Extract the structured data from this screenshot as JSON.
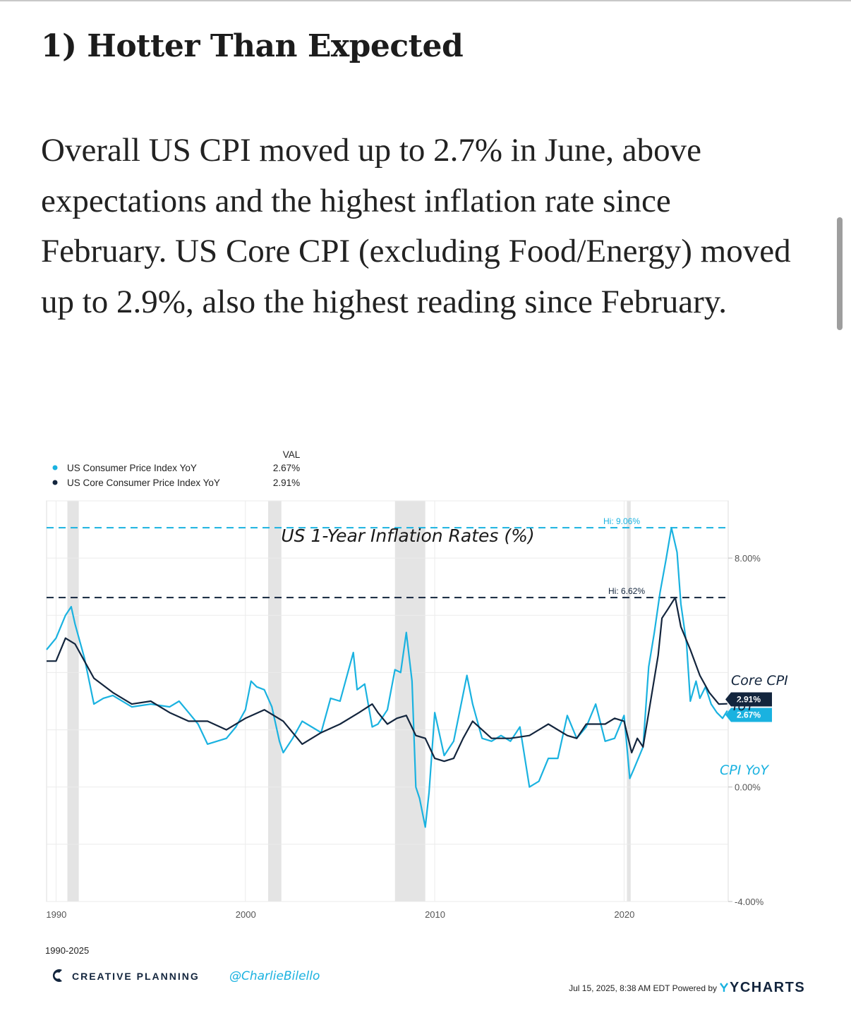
{
  "article": {
    "heading": "1) Hotter Than Expected",
    "paragraph": "Overall US CPI moved up to 2.7% in June, above expectations and the highest inflation rate since February. US Core CPI (excluding Food/Energy) moved up to 2.9%, also the highest reading since February."
  },
  "chart_data": {
    "type": "line",
    "title": "US 1-Year Inflation Rates (%)",
    "xlabel": "",
    "ylabel": "",
    "xlim": [
      1989.5,
      2025.5
    ],
    "ylim": [
      -4.0,
      10.0
    ],
    "x_ticks": [
      1990,
      2000,
      2010,
      2020
    ],
    "x_tick_labels": [
      "1990",
      "2000",
      "2010",
      "2020"
    ],
    "y_ticks": [
      8.0,
      0.0,
      -4.0
    ],
    "y_tick_labels": [
      "8.00%",
      "0.00%",
      "-4.00%"
    ],
    "gridlines": [
      10,
      8,
      6,
      4,
      2,
      0,
      -2,
      -4
    ],
    "recessions": [
      [
        1990.6,
        1991.2
      ],
      [
        2001.2,
        2001.9
      ],
      [
        2007.9,
        2009.5
      ],
      [
        2020.15,
        2020.35
      ]
    ],
    "legend": {
      "header": "VAL",
      "items": [
        {
          "name": "US Consumer Price Index YoY",
          "value": "2.67%",
          "color": "#1ab2e0"
        },
        {
          "name": "US Core Consumer Price Index YoY",
          "value": "2.91%",
          "color": "#13253d"
        }
      ]
    },
    "reference_lines": [
      {
        "label": "Hi: 9.06%",
        "value": 9.06,
        "color": "#1ab2e0"
      },
      {
        "label": "Hi: 6.62%",
        "value": 6.62,
        "color": "#13253d"
      }
    ],
    "end_labels": [
      {
        "series": "US Core Consumer Price Index YoY",
        "text": "2.91%",
        "value": 2.91
      },
      {
        "series": "US Consumer Price Index YoY",
        "text": "2.67%",
        "value": 2.67
      }
    ],
    "annotations": {
      "core": [
        "Core CPI",
        "YoY"
      ],
      "cpi": "CPI YoY"
    },
    "series": [
      {
        "name": "US Consumer Price Index YoY",
        "color": "#1ab2e0",
        "x": [
          1989.5,
          1990.0,
          1990.5,
          1990.8,
          1991.0,
          1991.5,
          1992.0,
          1992.5,
          1993.0,
          1994.0,
          1995.0,
          1996.0,
          1996.5,
          1997.0,
          1997.5,
          1998.0,
          1998.5,
          1999.0,
          1999.5,
          2000.0,
          2000.3,
          2000.6,
          2001.0,
          2001.4,
          2001.8,
          2002.0,
          2002.5,
          2003.0,
          2003.5,
          2004.0,
          2004.5,
          2005.0,
          2005.7,
          2005.9,
          2006.3,
          2006.7,
          2007.0,
          2007.5,
          2007.9,
          2008.2,
          2008.5,
          2008.8,
          2009.0,
          2009.2,
          2009.5,
          2009.7,
          2010.0,
          2010.5,
          2011.0,
          2011.7,
          2012.0,
          2012.5,
          2013.0,
          2013.5,
          2014.0,
          2014.5,
          2015.0,
          2015.5,
          2016.0,
          2016.5,
          2017.0,
          2017.5,
          2018.0,
          2018.5,
          2019.0,
          2019.5,
          2020.0,
          2020.3,
          2020.5,
          2021.0,
          2021.3,
          2021.6,
          2021.9,
          2022.2,
          2022.5,
          2022.8,
          2023.0,
          2023.3,
          2023.5,
          2023.8,
          2024.0,
          2024.3,
          2024.6,
          2024.9,
          2025.2,
          2025.45
        ],
        "values": [
          4.8,
          5.2,
          6.0,
          6.3,
          5.7,
          4.5,
          2.9,
          3.1,
          3.2,
          2.8,
          2.9,
          2.8,
          3.0,
          2.6,
          2.2,
          1.5,
          1.6,
          1.7,
          2.1,
          2.7,
          3.7,
          3.5,
          3.4,
          2.8,
          1.6,
          1.2,
          1.7,
          2.3,
          2.1,
          1.9,
          3.1,
          3.0,
          4.7,
          3.4,
          3.6,
          2.1,
          2.2,
          2.7,
          4.1,
          4.0,
          5.4,
          3.7,
          0.0,
          -0.4,
          -1.4,
          -0.2,
          2.6,
          1.1,
          1.6,
          3.9,
          2.9,
          1.7,
          1.6,
          1.8,
          1.6,
          2.1,
          0.0,
          0.2,
          1.0,
          1.0,
          2.5,
          1.7,
          2.1,
          2.9,
          1.6,
          1.7,
          2.5,
          0.3,
          0.6,
          1.4,
          4.2,
          5.4,
          6.8,
          7.9,
          9.06,
          8.2,
          6.4,
          5.0,
          3.0,
          3.7,
          3.1,
          3.5,
          2.9,
          2.6,
          2.4,
          2.67
        ]
      },
      {
        "name": "US Core Consumer Price Index YoY",
        "color": "#13253d",
        "x": [
          1989.5,
          1990.0,
          1990.5,
          1991.0,
          1991.5,
          1992.0,
          1993.0,
          1994.0,
          1995.0,
          1996.0,
          1997.0,
          1998.0,
          1999.0,
          2000.0,
          2001.0,
          2002.0,
          2003.0,
          2004.0,
          2005.0,
          2006.0,
          2006.7,
          2007.0,
          2007.5,
          2008.0,
          2008.5,
          2009.0,
          2009.5,
          2010.0,
          2010.5,
          2011.0,
          2011.5,
          2012.0,
          2013.0,
          2014.0,
          2015.0,
          2016.0,
          2017.0,
          2017.5,
          2018.0,
          2019.0,
          2019.5,
          2020.0,
          2020.4,
          2020.7,
          2021.0,
          2021.4,
          2021.8,
          2022.0,
          2022.3,
          2022.7,
          2023.0,
          2023.5,
          2024.0,
          2024.5,
          2025.0,
          2025.45
        ],
        "values": [
          4.4,
          4.4,
          5.2,
          5.0,
          4.4,
          3.8,
          3.3,
          2.9,
          3.0,
          2.6,
          2.3,
          2.3,
          2.0,
          2.4,
          2.7,
          2.3,
          1.5,
          1.9,
          2.2,
          2.6,
          2.9,
          2.6,
          2.2,
          2.4,
          2.5,
          1.8,
          1.7,
          1.0,
          0.9,
          1.0,
          1.7,
          2.3,
          1.7,
          1.7,
          1.8,
          2.2,
          1.8,
          1.7,
          2.2,
          2.2,
          2.4,
          2.3,
          1.2,
          1.7,
          1.4,
          3.0,
          4.6,
          5.9,
          6.2,
          6.62,
          5.6,
          4.8,
          3.9,
          3.3,
          2.9,
          2.91
        ]
      }
    ]
  },
  "footer": {
    "range": "1990-2025",
    "brand": "CREATIVE PLANNING",
    "handle": "@CharlieBilello",
    "timestamp": "Jul 15, 2025, 8:38 AM EDT Powered by",
    "vendor": "YCHARTS"
  }
}
